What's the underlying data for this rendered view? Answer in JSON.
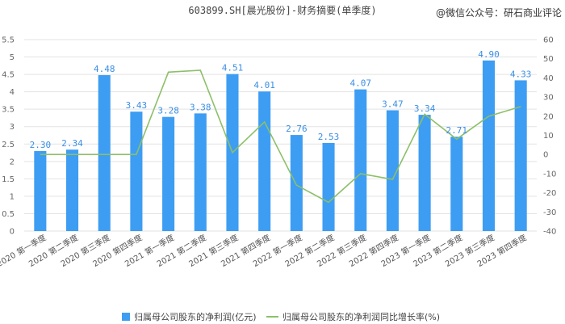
{
  "chart_data": {
    "type": "bar",
    "title": "603899.SH[晨光股份]-财务摘要(单季度)",
    "watermark": "@微信公众号：研石商业评论",
    "categories": [
      "2020 第一季度",
      "2020 第二季度",
      "2020 第三季度",
      "2020 第四季度",
      "2021 第一季度",
      "2021 第二季度",
      "2021 第三季度",
      "2021 第四季度",
      "2022 第一季度",
      "2022 第二季度",
      "2022 第三季度",
      "2022 第四季度",
      "2023 第一季度",
      "2023 第二季度",
      "2023 第三季度",
      "2023 第四季度"
    ],
    "y_left": {
      "min": 0,
      "max": 5.5,
      "step": 0.5,
      "ticks": [
        "0",
        "0.5",
        "1",
        "1.5",
        "2",
        "2.5",
        "3",
        "3.5",
        "4",
        "4.5",
        "5",
        "5.5"
      ]
    },
    "y_right": {
      "min": -40,
      "max": 60,
      "step": 10,
      "ticks": [
        "-40",
        "-30",
        "-20",
        "-10",
        "0",
        "10",
        "20",
        "30",
        "40",
        "50",
        "60"
      ]
    },
    "series": [
      {
        "name": "归属母公司股东的净利润(亿元)",
        "kind": "bar",
        "axis": "left",
        "color": "#3d9df3",
        "values": [
          2.3,
          2.34,
          4.48,
          3.43,
          3.28,
          3.38,
          4.51,
          4.01,
          2.76,
          2.53,
          4.07,
          3.47,
          3.34,
          2.71,
          4.9,
          4.33
        ],
        "labels": [
          "2.30",
          "2.34",
          "4.48",
          "3.43",
          "3.28",
          "3.38",
          "4.51",
          "4.01",
          "2.76",
          "2.53",
          "4.07",
          "3.47",
          "3.34",
          "2.71",
          "4.90",
          "4.33"
        ]
      },
      {
        "name": "归属母公司股东的净利润同比增长率(%)",
        "kind": "line",
        "axis": "right",
        "color": "#8dbf69",
        "values": [
          0,
          0,
          0,
          0,
          43,
          44,
          1,
          17,
          -16,
          -25,
          -10,
          -13,
          21,
          8,
          20,
          25
        ]
      }
    ],
    "grid": true,
    "legend": "bottom"
  }
}
